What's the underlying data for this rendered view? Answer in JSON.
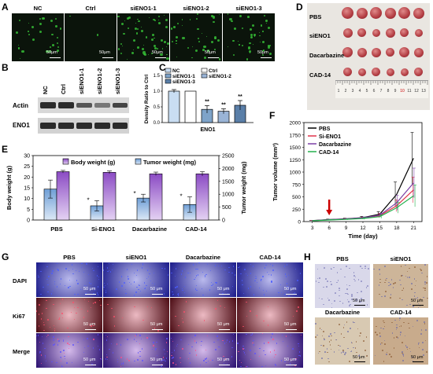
{
  "panels": {
    "A": "A",
    "B": "B",
    "C": "C",
    "D": "D",
    "E": "E",
    "F": "F",
    "G": "G",
    "H": "H"
  },
  "panelA": {
    "columns": [
      "NC",
      "Ctrl",
      "siENO1-1",
      "siENO1-2",
      "siENO1-3"
    ],
    "scale": "50μm"
  },
  "panelB": {
    "lanes": [
      "NC",
      "Ctrl",
      "siENO1-1",
      "siENO1-2",
      "siENO1-3"
    ],
    "rows": [
      "Actin",
      "ENO1"
    ]
  },
  "panelD": {
    "rows": [
      "PBS",
      "siENO1",
      "Dacarbazine",
      "CAD-14"
    ],
    "ruler_numbers": [
      "1",
      "2",
      "3",
      "4",
      "5",
      "6",
      "7",
      "8",
      "9",
      "10",
      "11",
      "12",
      "13"
    ]
  },
  "panelG": {
    "columns": [
      "PBS",
      "siENO1",
      "Dacarbazine",
      "CAD-14"
    ],
    "rows": [
      "DAPI",
      "Ki67",
      "Merge"
    ],
    "scale": "50 μm"
  },
  "panelH": {
    "labels": [
      "PBS",
      "siENO1",
      "Dacarbazine",
      "CAD-14"
    ],
    "scale": "50 μm"
  },
  "chart_data": [
    {
      "id": "C",
      "type": "bar",
      "categories": [
        "NC",
        "Ctrl",
        "siENO1-1",
        "siENO1-2",
        "siENO1-3"
      ],
      "values": [
        1.0,
        1.0,
        0.42,
        0.36,
        0.55
      ],
      "errors": [
        0.05,
        0.0,
        0.12,
        0.08,
        0.15
      ],
      "colors": [
        "#c9ddf2",
        "#ffffff",
        "#7ea3c9",
        "#9ab4d6",
        "#5a7fa8"
      ],
      "significance": [
        "",
        "",
        "**",
        "**",
        "**"
      ],
      "xlabel": "ENO1",
      "ylabel": "Density Ratio to Ctrl",
      "ylim": [
        0,
        1.5
      ],
      "yticks": [
        "0.0",
        "0.5",
        "1.0",
        "1.5"
      ],
      "legend": [
        "NC",
        "Ctrl",
        "siENO1-1",
        "siENO1-2",
        "siENO1-3"
      ]
    },
    {
      "id": "E",
      "type": "bar",
      "categories": [
        "PBS",
        "Si-ENO1",
        "Dacarbazine",
        "CAD-14"
      ],
      "series": [
        {
          "name": "Body weight (g)",
          "values": [
            22.5,
            22.2,
            21.5,
            21.5
          ],
          "errors": [
            0.6,
            0.6,
            0.8,
            1.0
          ]
        },
        {
          "name": "Tumor weight (mg)",
          "values": [
            1200,
            550,
            850,
            600
          ],
          "errors": [
            350,
            200,
            150,
            300
          ]
        }
      ],
      "significance": [
        "",
        "*",
        "*",
        "*"
      ],
      "ylabel": "Body weight (g)",
      "y2label": "Tumor weight (mg)",
      "ylim": [
        0,
        30
      ],
      "y2lim": [
        0,
        2500
      ],
      "yticks": [
        "0",
        "5",
        "10",
        "15",
        "20",
        "25",
        "30"
      ],
      "y2ticks": [
        "0",
        "500",
        "1000",
        "1500",
        "2000",
        "2500"
      ]
    },
    {
      "id": "F",
      "type": "line",
      "x": [
        3,
        6,
        9,
        12,
        15,
        18,
        21
      ],
      "xticks": [
        "3",
        "6",
        "9",
        "12",
        "15",
        "18",
        "21"
      ],
      "yticks": [
        "0",
        "250",
        "500",
        "750",
        "1000",
        "1250",
        "1500",
        "1750",
        "2000"
      ],
      "xlabel": "Time (day)",
      "ylabel": "Tumor volume (mm³)",
      "xlim": [
        1.5,
        22.5
      ],
      "ylim": [
        0,
        2000
      ],
      "arrow_x": 6,
      "series": [
        {
          "name": "PBS",
          "color": "#000000",
          "values": [
            20,
            40,
            55,
            80,
            150,
            550,
            1280
          ],
          "errors": [
            5,
            10,
            15,
            25,
            50,
            250,
            520
          ]
        },
        {
          "name": "Si-ENO1",
          "color": "#e0334a",
          "values": [
            18,
            35,
            50,
            70,
            120,
            320,
            640
          ],
          "errors": [
            5,
            8,
            12,
            20,
            40,
            120,
            260
          ]
        },
        {
          "name": "Dacarbazine",
          "color": "#7b3fa5",
          "values": [
            18,
            38,
            52,
            75,
            130,
            380,
            780
          ],
          "errors": [
            5,
            8,
            12,
            20,
            40,
            150,
            300
          ]
        },
        {
          "name": "CAD-14",
          "color": "#22b14c",
          "values": [
            16,
            32,
            45,
            62,
            100,
            280,
            520
          ],
          "errors": [
            5,
            8,
            10,
            18,
            35,
            110,
            220
          ]
        }
      ]
    }
  ]
}
